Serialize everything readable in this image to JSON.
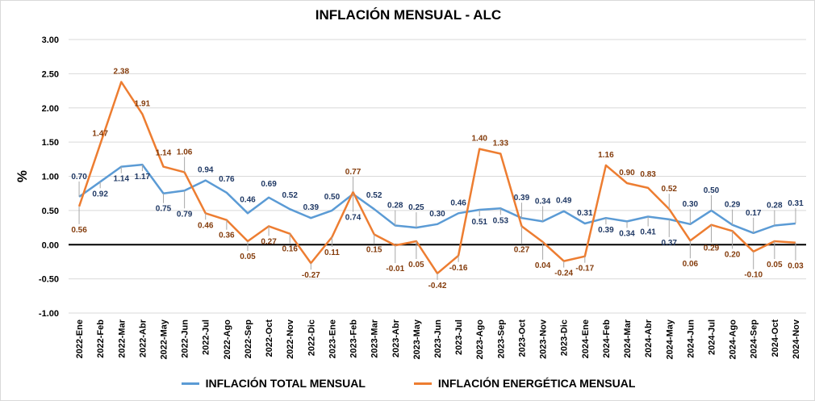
{
  "chart_data": {
    "type": "line",
    "title": "INFLACIÓN MENSUAL - ALC",
    "ylabel": "%",
    "xlabel": "",
    "ylim": [
      -1.0,
      3.0
    ],
    "yticks": [
      "3.00",
      "2.50",
      "2.00",
      "1.50",
      "1.00",
      "0.50",
      "0.00",
      "-0.50",
      "-1.00"
    ],
    "grid": true,
    "legend_position": "bottom",
    "categories": [
      "2022-Ene",
      "2022-Feb",
      "2022-Mar",
      "2022-Abr",
      "2022-May",
      "2022-Jun",
      "2022-Jul",
      "2022-Ago",
      "2022-Sep",
      "2022-Oct",
      "2022-Nov",
      "2022-Dic",
      "2023-Ene",
      "2023-Feb",
      "2023-Mar",
      "2023-Abr",
      "2023-May",
      "2023-Jun",
      "2023-Jul",
      "2023-Ago",
      "2023-Sep",
      "2023-Oct",
      "2023-Nov",
      "2023-Dic",
      "2024-Ene",
      "2024-Feb",
      "2024-Mar",
      "2024-Abr",
      "2024-May",
      "2024-Jun",
      "2024-Jul",
      "2024-Ago",
      "2024-Sep",
      "2024-Oct",
      "2024-Nov"
    ],
    "series": [
      {
        "name": "INFLACIÓN TOTAL MENSUAL",
        "color": "#5b9bd5",
        "label_color": "#1f3864",
        "values": [
          0.7,
          0.92,
          1.14,
          1.17,
          0.75,
          0.79,
          0.94,
          0.76,
          0.46,
          0.69,
          0.52,
          0.39,
          0.5,
          0.74,
          0.52,
          0.28,
          0.25,
          0.3,
          0.46,
          0.51,
          0.53,
          0.39,
          0.34,
          0.49,
          0.31,
          0.39,
          0.34,
          0.41,
          0.37,
          0.3,
          0.5,
          0.29,
          0.17,
          0.28,
          0.31
        ],
        "labels": [
          "0.70",
          "0.92",
          "1.14",
          "1.17",
          "0.75",
          "0.79",
          "0.94",
          "0.76",
          "0.46",
          "0.69",
          "0.52",
          "0.39",
          "0.50",
          "0.74",
          "0.52",
          "0.28",
          "0.25",
          "0.30",
          "0.46",
          "0.51",
          "0.53",
          "0.39",
          "0.34",
          "0.49",
          "0.31",
          "0.39",
          "0.34",
          "0.41",
          "0.37",
          "0.30",
          "0.50",
          "0.29",
          "0.17",
          "0.28",
          "0.31"
        ]
      },
      {
        "name": "INFLACIÓN ENERGÉTICA MENSUAL",
        "color": "#ed7d31",
        "label_color": "#843c0c",
        "values": [
          0.56,
          1.47,
          2.38,
          1.91,
          1.14,
          1.06,
          0.46,
          0.36,
          0.05,
          0.27,
          0.16,
          -0.27,
          0.11,
          0.77,
          0.15,
          -0.01,
          0.05,
          -0.42,
          -0.16,
          1.4,
          1.33,
          0.27,
          0.04,
          -0.24,
          -0.17,
          1.16,
          0.9,
          0.83,
          0.52,
          0.06,
          0.29,
          0.2,
          -0.1,
          0.05,
          0.03
        ],
        "labels": [
          "0.56",
          "1.47",
          "2.38",
          "1.91",
          "1.14",
          "1.06",
          "0.46",
          "0.36",
          "0.05",
          "0.27",
          "0.16",
          "-0.27",
          "0.11",
          "0.77",
          "0.15",
          "-0.01",
          "0.05",
          "-0.42",
          "-0.16",
          "1.40",
          "1.33",
          "0.27",
          "0.04",
          "-0.24",
          "-0.17",
          "1.16",
          "0.90",
          "0.83",
          "0.52",
          "0.06",
          "0.29",
          "0.20",
          "-0.10",
          "0.05",
          "0.03"
        ]
      }
    ]
  }
}
